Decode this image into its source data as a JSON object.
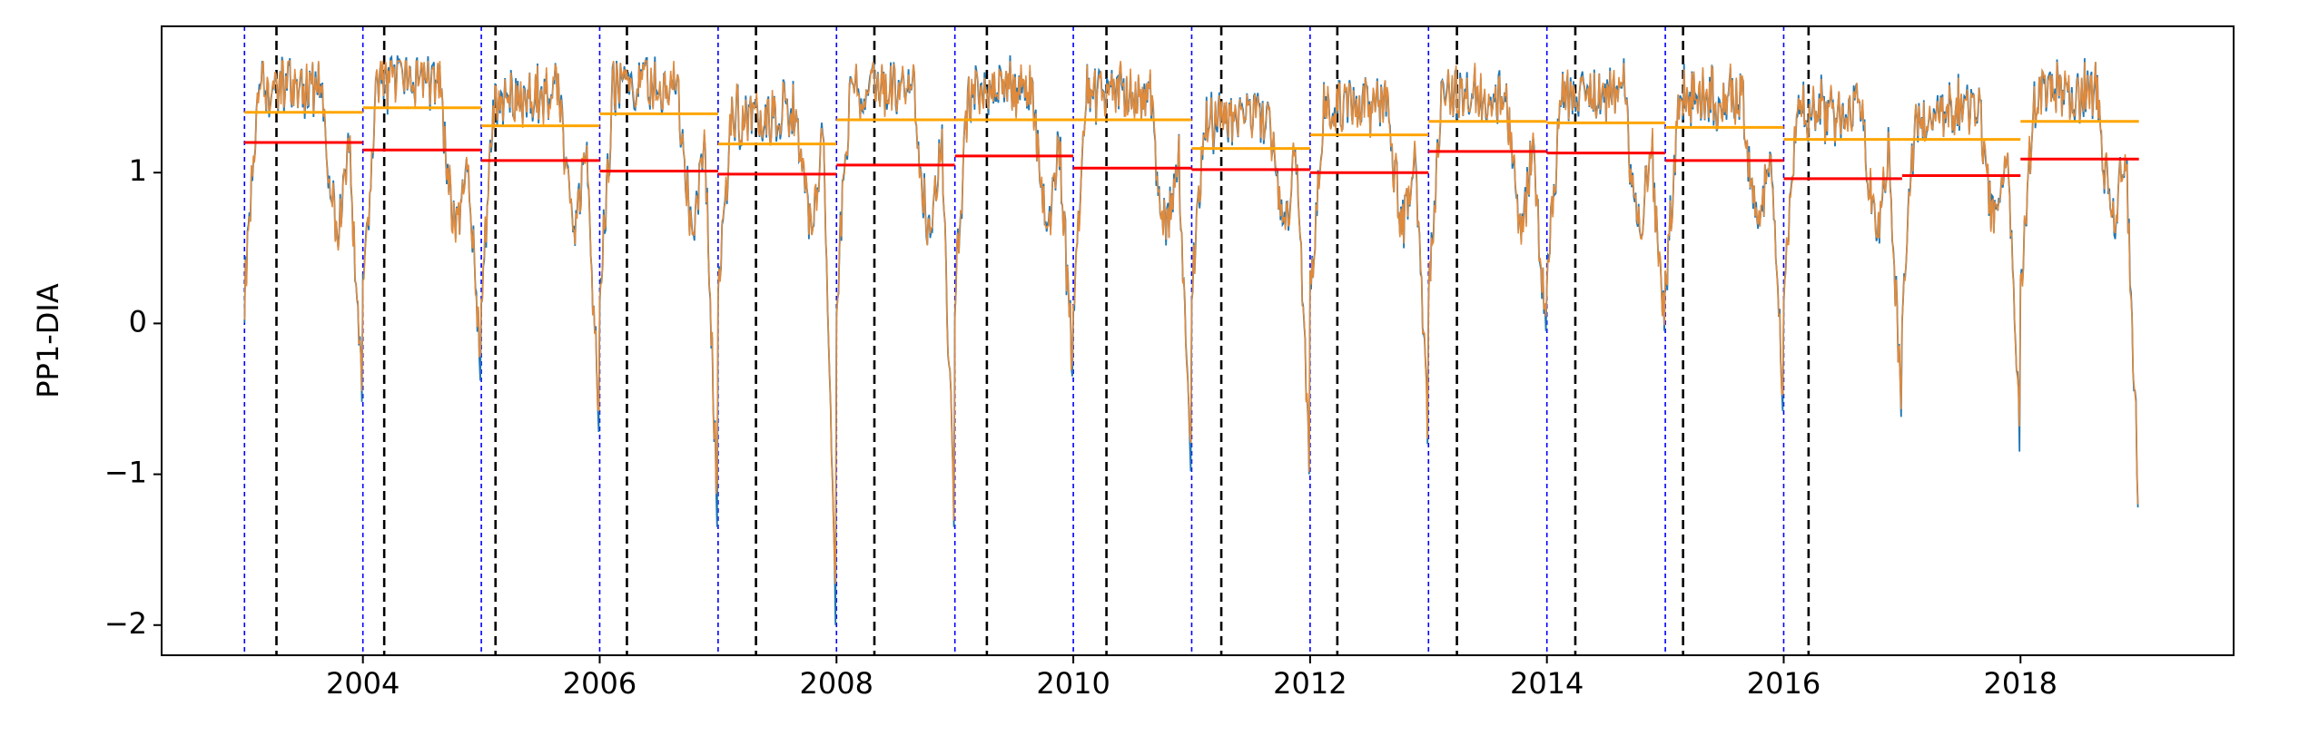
{
  "chart_data": {
    "type": "line",
    "title": "",
    "xlabel": "",
    "ylabel": "PP1-DIA",
    "xlim": [
      2002.3,
      2019.8
    ],
    "ylim": [
      -2.2,
      1.97
    ],
    "x_ticks": [
      2004,
      2006,
      2008,
      2010,
      2012,
      2014,
      2016,
      2018
    ],
    "x_tick_labels": [
      "2004",
      "2006",
      "2008",
      "2010",
      "2012",
      "2014",
      "2016",
      "2018"
    ],
    "y_ticks": [
      -2,
      -1,
      0,
      1
    ],
    "y_tick_labels": [
      "−2",
      "−1",
      "0",
      "1"
    ],
    "grid": false,
    "colors": {
      "raw_series": "#1f77b4",
      "smoothed_series": "#e08a3c",
      "mean_line": "#ffa500",
      "median_line": "#ff0000",
      "year_boundary": "#0000ff",
      "growing_season_start": "#000000"
    },
    "year_boundaries": [
      2003,
      2004,
      2005,
      2006,
      2007,
      2008,
      2009,
      2010,
      2011,
      2012,
      2013,
      2014,
      2015,
      2016
    ],
    "season_starts": [
      2003.27,
      2004.18,
      2005.12,
      2006.23,
      2007.32,
      2008.32,
      2009.27,
      2010.28,
      2011.25,
      2012.23,
      2013.24,
      2014.24,
      2015.15,
      2016.21
    ],
    "yearly_levels": [
      {
        "start": 2003,
        "end": 2004,
        "mean": 1.4,
        "median": 1.2
      },
      {
        "start": 2004,
        "end": 2005,
        "mean": 1.43,
        "median": 1.15
      },
      {
        "start": 2005,
        "end": 2006,
        "mean": 1.31,
        "median": 1.08
      },
      {
        "start": 2006,
        "end": 2007,
        "mean": 1.39,
        "median": 1.01
      },
      {
        "start": 2007,
        "end": 2008,
        "mean": 1.19,
        "median": 0.99
      },
      {
        "start": 2008,
        "end": 2009,
        "mean": 1.35,
        "median": 1.05
      },
      {
        "start": 2009,
        "end": 2010,
        "mean": 1.35,
        "median": 1.11
      },
      {
        "start": 2010,
        "end": 2011,
        "mean": 1.35,
        "median": 1.03
      },
      {
        "start": 2011,
        "end": 2012,
        "mean": 1.16,
        "median": 1.02
      },
      {
        "start": 2012,
        "end": 2013,
        "mean": 1.25,
        "median": 1.0
      },
      {
        "start": 2013,
        "end": 2014,
        "mean": 1.34,
        "median": 1.14
      },
      {
        "start": 2014,
        "end": 2015,
        "mean": 1.33,
        "median": 1.13
      },
      {
        "start": 2015,
        "end": 2016,
        "mean": 1.3,
        "median": 1.08
      },
      {
        "start": 2016,
        "end": 2017,
        "mean": 1.22,
        "median": 0.96
      },
      {
        "start": 2017,
        "end": 2018,
        "mean": 1.22,
        "median": 0.98
      },
      {
        "start": 2018,
        "end": 2019,
        "mean": 1.34,
        "median": 1.09
      }
    ],
    "yearly_troughs": [
      -0.52,
      -0.38,
      -0.72,
      -1.35,
      -2.0,
      -1.35,
      -0.35,
      -0.98,
      -1.0,
      -0.8,
      -0.05,
      -0.05,
      -0.58,
      -0.62,
      -0.85,
      -1.22
    ]
  }
}
